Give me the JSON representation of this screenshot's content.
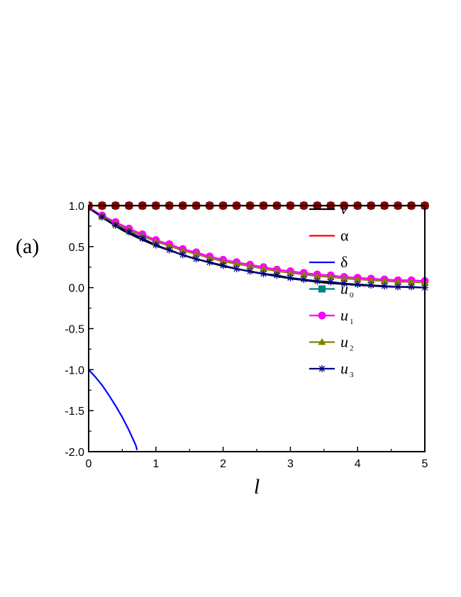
{
  "panel_label": "(a)",
  "chart_data": {
    "type": "line",
    "xlabel": "l",
    "ylabel": "",
    "xlim": [
      0,
      5
    ],
    "ylim": [
      -2.0,
      1.0
    ],
    "x_ticks": [
      0,
      1,
      2,
      3,
      4,
      5
    ],
    "x_tick_labels": [
      "0",
      "1",
      "2",
      "3",
      "4",
      "5"
    ],
    "y_ticks": [
      -2.0,
      -1.5,
      -1.0,
      -0.5,
      0.0,
      0.5,
      1.0
    ],
    "y_tick_labels": [
      "-2.0",
      "-1.5",
      "-1.0",
      "-0.5",
      "0.0",
      "0.5",
      "1.0"
    ],
    "grid": false,
    "legend_position": "top-right-inside",
    "series": [
      {
        "name": "v",
        "name_sub": "",
        "marker": "line",
        "color": "#000000",
        "x": [
          0,
          0.25,
          0.5,
          0.75,
          1,
          1.5,
          2,
          2.5,
          3,
          3.5,
          4,
          4.5,
          5
        ],
        "y": [
          0.97,
          0.83,
          0.7,
          0.6,
          0.51,
          0.37,
          0.26,
          0.18,
          0.11,
          0.06,
          0.03,
          0.01,
          0.0
        ]
      },
      {
        "name": "α",
        "name_sub": "",
        "marker": "line",
        "color": "#ff0000",
        "x": [
          0,
          5
        ],
        "y": [
          1.0,
          1.0
        ]
      },
      {
        "name": "δ",
        "name_sub": "",
        "marker": "line",
        "color": "#0000ff",
        "x": [
          0,
          0.1,
          0.2,
          0.3,
          0.4,
          0.5,
          0.6,
          0.7,
          0.72
        ],
        "y": [
          -1.0,
          -1.09,
          -1.19,
          -1.31,
          -1.44,
          -1.58,
          -1.74,
          -1.92,
          -1.98
        ]
      },
      {
        "name": "u",
        "name_sub": "0",
        "marker": "square",
        "color": "#008080",
        "x": [
          0,
          0.2,
          0.4,
          0.6,
          0.8,
          1.0,
          1.2,
          1.4,
          1.6,
          1.8,
          2.0,
          2.2,
          2.4,
          2.6,
          2.8,
          3.0,
          3.2,
          3.4,
          3.6,
          3.8,
          4.0,
          4.2,
          4.4,
          4.6,
          4.8,
          5.0
        ],
        "y": [
          1.0,
          1.0,
          1.0,
          1.0,
          1.0,
          1.0,
          1.0,
          1.0,
          1.0,
          1.0,
          1.0,
          1.0,
          1.0,
          1.0,
          1.0,
          1.0,
          1.0,
          1.0,
          1.0,
          1.0,
          1.0,
          1.0,
          1.0,
          1.0,
          1.0,
          1.0
        ]
      },
      {
        "name": "u",
        "name_sub": "1",
        "marker": "circle",
        "color": "#ff00ff",
        "x": [
          0,
          0.2,
          0.4,
          0.6,
          0.8,
          1.0,
          1.2,
          1.4,
          1.6,
          1.8,
          2.0,
          2.2,
          2.4,
          2.6,
          2.8,
          3.0,
          3.2,
          3.4,
          3.6,
          3.8,
          4.0,
          4.2,
          4.4,
          4.6,
          4.8,
          5.0
        ],
        "y": [
          0.98,
          0.88,
          0.8,
          0.72,
          0.65,
          0.58,
          0.53,
          0.47,
          0.43,
          0.38,
          0.34,
          0.31,
          0.28,
          0.25,
          0.22,
          0.2,
          0.18,
          0.16,
          0.15,
          0.13,
          0.12,
          0.11,
          0.1,
          0.09,
          0.09,
          0.08
        ]
      },
      {
        "name": "u",
        "name_sub": "2",
        "marker": "triangle",
        "color": "#808000",
        "x": [
          0,
          0.2,
          0.4,
          0.6,
          0.8,
          1.0,
          1.2,
          1.4,
          1.6,
          1.8,
          2.0,
          2.2,
          2.4,
          2.6,
          2.8,
          3.0,
          3.2,
          3.4,
          3.6,
          3.8,
          4.0,
          4.2,
          4.4,
          4.6,
          4.8,
          5.0
        ],
        "y": [
          0.97,
          0.87,
          0.78,
          0.7,
          0.63,
          0.56,
          0.51,
          0.45,
          0.41,
          0.36,
          0.32,
          0.29,
          0.26,
          0.23,
          0.2,
          0.18,
          0.16,
          0.14,
          0.13,
          0.11,
          0.1,
          0.09,
          0.08,
          0.07,
          0.07,
          0.06
        ]
      },
      {
        "name": "u",
        "name_sub": "3",
        "marker": "star",
        "color": "#000080",
        "x": [
          0,
          0.2,
          0.4,
          0.6,
          0.8,
          1.0,
          1.2,
          1.4,
          1.6,
          1.8,
          2.0,
          2.2,
          2.4,
          2.6,
          2.8,
          3.0,
          3.2,
          3.4,
          3.6,
          3.8,
          4.0,
          4.2,
          4.4,
          4.6,
          4.8,
          5.0
        ],
        "y": [
          0.97,
          0.86,
          0.76,
          0.68,
          0.6,
          0.52,
          0.46,
          0.4,
          0.35,
          0.31,
          0.27,
          0.23,
          0.2,
          0.17,
          0.15,
          0.12,
          0.1,
          0.08,
          0.07,
          0.05,
          0.04,
          0.03,
          0.02,
          0.01,
          0.01,
          0.0
        ]
      }
    ],
    "extra_series": [
      {
        "marker": "circle",
        "color": "#8b0000",
        "x": [
          0,
          0.2,
          0.4,
          0.6,
          0.8,
          1.0,
          1.2,
          1.4,
          1.6,
          1.8,
          2.0,
          2.2,
          2.4,
          2.6,
          2.8,
          3.0,
          3.2,
          3.4,
          3.6,
          3.8,
          4.0,
          4.2,
          4.4,
          4.6,
          4.8,
          5.0
        ],
        "y": [
          1.0,
          1.0,
          1.0,
          1.0,
          1.0,
          1.0,
          1.0,
          1.0,
          1.0,
          1.0,
          1.0,
          1.0,
          1.0,
          1.0,
          1.0,
          1.0,
          1.0,
          1.0,
          1.0,
          1.0,
          1.0,
          1.0,
          1.0,
          1.0,
          1.0,
          1.0
        ]
      }
    ]
  }
}
